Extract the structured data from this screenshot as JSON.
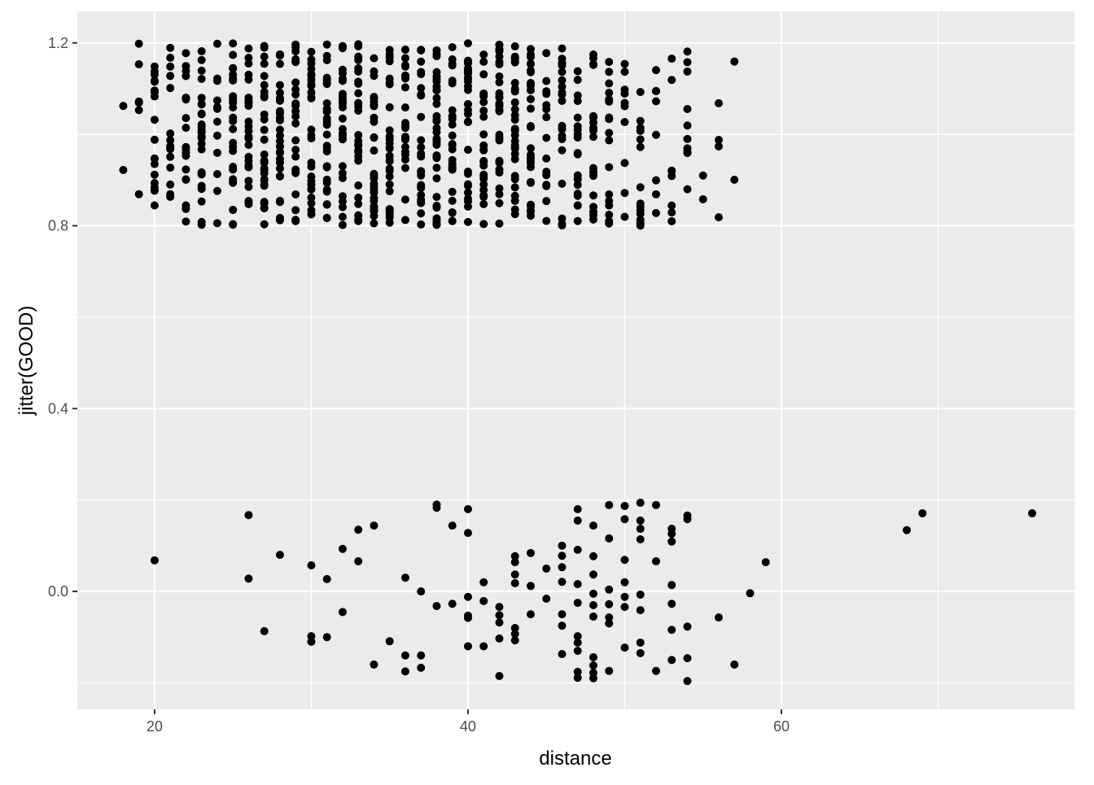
{
  "chart_data": {
    "type": "scatter",
    "title": "",
    "xlabel": "distance",
    "ylabel": "jitter(GOOD)",
    "xlim": [
      15.07,
      78.7
    ],
    "ylim": [
      -0.258,
      1.269
    ],
    "x_ticks": [
      20,
      40,
      60
    ],
    "x_tick_labels": [
      "20",
      "40",
      "60"
    ],
    "y_ticks": [
      0.0,
      0.4,
      0.8,
      1.2
    ],
    "y_tick_labels": [
      "0.0",
      "0.4",
      "0.8",
      "1.2"
    ],
    "grid": true,
    "panel_background": "#EBEBEB",
    "grid_color": "#FFFFFF",
    "point_color": "#000000",
    "jittered_group_good_1": {
      "y_center": 1,
      "jitter_amount": 0.2,
      "counts_by_distance": {
        "18": 2,
        "19": 6,
        "20": 18,
        "21": 15,
        "22": 20,
        "23": 25,
        "24": 12,
        "25": 30,
        "26": 28,
        "27": 30,
        "28": 30,
        "29": 25,
        "30": 28,
        "31": 30,
        "32": 30,
        "33": 28,
        "34": 30,
        "35": 28,
        "36": 25,
        "37": 25,
        "38": 35,
        "39": 28,
        "40": 30,
        "41": 25,
        "42": 30,
        "43": 30,
        "44": 28,
        "45": 15,
        "46": 20,
        "47": 20,
        "48": 20,
        "49": 18,
        "50": 10,
        "51": 15,
        "52": 8,
        "53": 8,
        "54": 10,
        "55": 2,
        "56": 4,
        "57": 2
      }
    },
    "points_good_0": [
      [
        20,
        0.068
      ],
      [
        26,
        0.167
      ],
      [
        26,
        0.028
      ],
      [
        27,
        -0.087
      ],
      [
        28,
        0.08
      ],
      [
        30,
        0.057
      ],
      [
        30,
        -0.098
      ],
      [
        30,
        -0.11
      ],
      [
        31,
        0.027
      ],
      [
        31,
        -0.1
      ],
      [
        32,
        0.093
      ],
      [
        32,
        -0.045
      ],
      [
        33,
        0.135
      ],
      [
        33,
        0.066
      ],
      [
        34,
        0.144
      ],
      [
        34,
        -0.16
      ],
      [
        35,
        -0.109
      ],
      [
        36,
        0.03
      ],
      [
        36,
        -0.14
      ],
      [
        36,
        -0.175
      ],
      [
        37,
        0
      ],
      [
        37,
        -0.14
      ],
      [
        37,
        -0.167
      ],
      [
        38,
        0.19
      ],
      [
        38,
        0.183
      ],
      [
        38,
        -0.032
      ],
      [
        39,
        -0.027
      ],
      [
        39,
        0.144
      ],
      [
        40,
        0.18
      ],
      [
        40,
        0.128
      ],
      [
        40,
        -0.012
      ],
      [
        40,
        -0.053
      ],
      [
        40,
        -0.058
      ],
      [
        40,
        -0.12
      ],
      [
        41,
        0.02
      ],
      [
        41,
        -0.021
      ],
      [
        41,
        -0.12
      ],
      [
        42,
        -0.034
      ],
      [
        42,
        -0.052
      ],
      [
        42,
        -0.068
      ],
      [
        42,
        -0.103
      ],
      [
        42,
        -0.185
      ],
      [
        43,
        0.077
      ],
      [
        43,
        0.064
      ],
      [
        43,
        0.037
      ],
      [
        43,
        0.018
      ],
      [
        43,
        -0.08
      ],
      [
        43,
        -0.093
      ],
      [
        43,
        -0.107
      ],
      [
        44,
        0.084
      ],
      [
        44,
        0.012
      ],
      [
        44,
        -0.05
      ],
      [
        45,
        0.05
      ],
      [
        45,
        -0.016
      ],
      [
        46,
        0.1
      ],
      [
        46,
        0.078
      ],
      [
        46,
        0.053
      ],
      [
        46,
        0.021
      ],
      [
        46,
        -0.05
      ],
      [
        46,
        -0.075
      ],
      [
        46,
        -0.137
      ],
      [
        47,
        0.18
      ],
      [
        47,
        0.155
      ],
      [
        47,
        0.091
      ],
      [
        47,
        0.016
      ],
      [
        47,
        -0.025
      ],
      [
        47,
        -0.098
      ],
      [
        47,
        -0.112
      ],
      [
        47,
        -0.13
      ],
      [
        47,
        -0.176
      ],
      [
        47,
        -0.189
      ],
      [
        48,
        0.144
      ],
      [
        48,
        0.077
      ],
      [
        48,
        0.037
      ],
      [
        48,
        -0.005
      ],
      [
        48,
        -0.03
      ],
      [
        48,
        -0.055
      ],
      [
        48,
        -0.144
      ],
      [
        48,
        -0.162
      ],
      [
        48,
        -0.178
      ],
      [
        48,
        -0.19
      ],
      [
        49,
        0.189
      ],
      [
        49,
        0.116
      ],
      [
        49,
        0.004
      ],
      [
        49,
        -0.028
      ],
      [
        49,
        -0.057
      ],
      [
        49,
        -0.07
      ],
      [
        49,
        -0.174
      ],
      [
        50,
        0.187
      ],
      [
        50,
        0.158
      ],
      [
        50,
        0.069
      ],
      [
        50,
        0.02
      ],
      [
        50,
        -0.012
      ],
      [
        50,
        -0.034
      ],
      [
        50,
        -0.123
      ],
      [
        51,
        0.194
      ],
      [
        51,
        0.155
      ],
      [
        51,
        0.137
      ],
      [
        51,
        0.114
      ],
      [
        51,
        -0.007
      ],
      [
        51,
        -0.041
      ],
      [
        51,
        -0.112
      ],
      [
        51,
        -0.135
      ],
      [
        52,
        0.189
      ],
      [
        52,
        0.066
      ],
      [
        52,
        -0.174
      ],
      [
        53,
        0.137
      ],
      [
        53,
        0.126
      ],
      [
        53,
        0.109
      ],
      [
        53,
        0.014
      ],
      [
        53,
        -0.027
      ],
      [
        53,
        -0.084
      ],
      [
        53,
        -0.15
      ],
      [
        54,
        0.166
      ],
      [
        54,
        0.158
      ],
      [
        54,
        -0.077
      ],
      [
        54,
        -0.146
      ],
      [
        54,
        -0.196
      ],
      [
        56,
        -0.057
      ],
      [
        57,
        -0.16
      ],
      [
        58,
        -0.004
      ],
      [
        59,
        0.064
      ],
      [
        68,
        0.134
      ],
      [
        69,
        0.171
      ],
      [
        76,
        0.171
      ]
    ]
  }
}
